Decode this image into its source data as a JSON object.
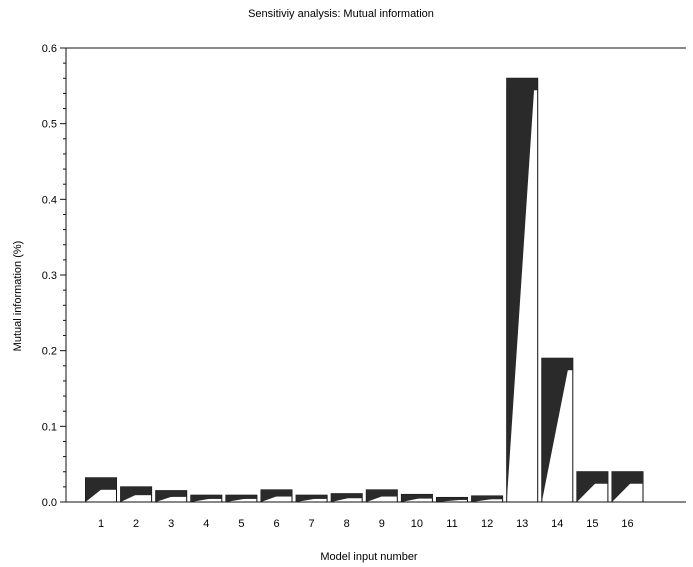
{
  "chart_data": {
    "type": "bar",
    "title": "Sensitiviy analysis: Mutual information",
    "xlabel": "Model input number",
    "ylabel": "Mutual information (%)",
    "ylim": [
      0,
      0.6
    ],
    "yticks": [
      "0.0",
      "0.1",
      "0.2",
      "0.3",
      "0.4",
      "0.5",
      "0.6"
    ],
    "categories": [
      "1",
      "2",
      "3",
      "4",
      "5",
      "6",
      "7",
      "8",
      "9",
      "10",
      "11",
      "12",
      "13",
      "14",
      "15",
      "16"
    ],
    "values": [
      0.032,
      0.02,
      0.015,
      0.009,
      0.009,
      0.016,
      0.009,
      0.011,
      0.016,
      0.01,
      0.006,
      0.008,
      0.56,
      0.19,
      0.04,
      0.04
    ],
    "colors": {
      "dark": "#2a2a2a",
      "light": "#ffffff",
      "outline": "#111111"
    },
    "grid": false,
    "legend": "none"
  }
}
